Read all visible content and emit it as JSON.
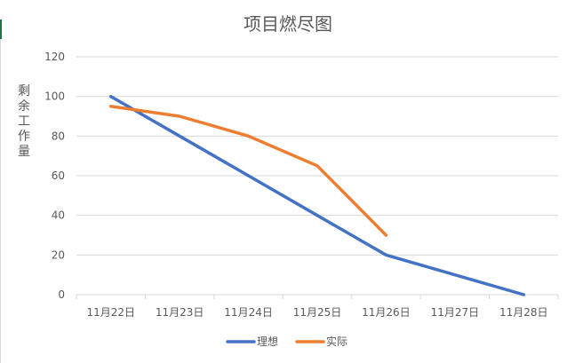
{
  "chart_data": {
    "type": "line",
    "title": "项目燃尽图",
    "ylabel": "剩余工作量",
    "xlabel": "",
    "categories": [
      "11月22日",
      "11月23日",
      "11月24日",
      "11月25日",
      "11月26日",
      "11月27日",
      "11月28日"
    ],
    "yticks": [
      "0",
      "20",
      "40",
      "60",
      "80",
      "100",
      "120"
    ],
    "ylim": [
      0,
      120
    ],
    "grid": true,
    "legend_position": "bottom",
    "series": [
      {
        "name": "理想",
        "color": "#4472C4",
        "values": [
          100,
          80,
          60,
          40,
          20,
          10,
          0
        ]
      },
      {
        "name": "实际",
        "color": "#ED7D31",
        "values": [
          95,
          90,
          80,
          65,
          30,
          null,
          null
        ]
      }
    ]
  }
}
